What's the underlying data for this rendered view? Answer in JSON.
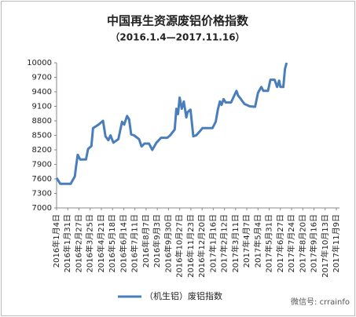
{
  "chart_data": {
    "type": "line",
    "title": "中国再生资源废铝价格指数",
    "subtitle": "（2016.1.4—2017.11.16）",
    "watermark": "微信号: crrainfo",
    "x": [
      "2016-01-04",
      "2016-01-13",
      "2016-02-07",
      "2016-02-17",
      "2016-02-20",
      "2016-02-24",
      "2016-03-01",
      "2016-03-15",
      "2016-03-20",
      "2016-03-28",
      "2016-04-01",
      "2016-04-14",
      "2016-04-25",
      "2016-05-01",
      "2016-05-08",
      "2016-05-13",
      "2016-05-20",
      "2016-06-01",
      "2016-06-10",
      "2016-06-15",
      "2016-06-22",
      "2016-06-27",
      "2016-07-02",
      "2016-07-09",
      "2016-07-21",
      "2016-07-27",
      "2016-08-03",
      "2016-08-14",
      "2016-08-22",
      "2016-09-01",
      "2016-09-12",
      "2016-09-27",
      "2016-10-04",
      "2016-10-15",
      "2016-10-19",
      "2016-10-23",
      "2016-10-27",
      "2016-11-01",
      "2016-11-06",
      "2016-11-12",
      "2016-11-15",
      "2016-11-22",
      "2016-11-29",
      "2016-12-06",
      "2016-12-14",
      "2016-12-21",
      "2017-01-14",
      "2017-01-22",
      "2017-01-27",
      "2017-02-01",
      "2017-02-05",
      "2017-02-10",
      "2017-02-15",
      "2017-02-28",
      "2017-03-13",
      "2017-03-17",
      "2017-03-22",
      "2017-04-01",
      "2017-04-14",
      "2017-04-27",
      "2017-05-04",
      "2017-05-12",
      "2017-05-17",
      "2017-05-28",
      "2017-06-03",
      "2017-06-13",
      "2017-06-19",
      "2017-06-24",
      "2017-06-27",
      "2017-07-04",
      "2017-07-08",
      "2017-07-12"
    ],
    "series": [
      {
        "name": "（机生铝）废铝指数",
        "color": "#4a7ebb",
        "values": [
          7620,
          7500,
          7500,
          7650,
          7860,
          8100,
          8000,
          8000,
          8220,
          8280,
          8650,
          8720,
          8800,
          8480,
          8400,
          8500,
          8350,
          8420,
          8780,
          8720,
          8900,
          8830,
          8520,
          8500,
          8420,
          8270,
          8330,
          8330,
          8200,
          8350,
          8450,
          8450,
          8500,
          8620,
          9050,
          8940,
          9280,
          9050,
          9200,
          8870,
          8980,
          9030,
          8480,
          8500,
          8580,
          8650,
          8650,
          8780,
          9030,
          9200,
          9130,
          9250,
          9180,
          9180,
          9420,
          9320,
          9270,
          9150,
          9100,
          9090,
          9380,
          9500,
          9420,
          9420,
          9650,
          9650,
          9500,
          9630,
          9500,
          9500,
          9870,
          10000
        ]
      }
    ],
    "xlim": [
      "2016-01-04",
      "2017-11-09"
    ],
    "xticks": [
      {
        "value": "2016-01-04",
        "label": "2016年1月4日"
      },
      {
        "value": "2016-01-31",
        "label": "2016年1月31日"
      },
      {
        "value": "2016-02-27",
        "label": "2016年2月27日"
      },
      {
        "value": "2016-03-25",
        "label": "2016年3月25日"
      },
      {
        "value": "2016-04-21",
        "label": "2016年4月21日"
      },
      {
        "value": "2016-05-18",
        "label": "2016年5月18日"
      },
      {
        "value": "2016-06-14",
        "label": "2016年6月14日"
      },
      {
        "value": "2016-07-11",
        "label": "2016年7月11日"
      },
      {
        "value": "2016-08-07",
        "label": "2016年8月7日"
      },
      {
        "value": "2016-09-03",
        "label": "2016年9月3日"
      },
      {
        "value": "2016-09-30",
        "label": "2016年9月30日"
      },
      {
        "value": "2016-10-27",
        "label": "2016年10月27日"
      },
      {
        "value": "2016-11-23",
        "label": "2016年11月23日"
      },
      {
        "value": "2016-12-20",
        "label": "2016年12月20日"
      },
      {
        "value": "2017-01-16",
        "label": "2017年1月16日"
      },
      {
        "value": "2017-02-12",
        "label": "2017年2月12日"
      },
      {
        "value": "2017-03-11",
        "label": "2017年3月11日"
      },
      {
        "value": "2017-04-07",
        "label": "2017年4月7日"
      },
      {
        "value": "2017-05-04",
        "label": "2017年5月4日"
      },
      {
        "value": "2017-05-31",
        "label": "2017年5月31日"
      },
      {
        "value": "2017-06-27",
        "label": "2017年6月27日"
      },
      {
        "value": "2017-07-24",
        "label": "2017年7月24日"
      },
      {
        "value": "2017-08-20",
        "label": "2017年8月20日"
      },
      {
        "value": "2017-09-16",
        "label": "2017年9月16日"
      },
      {
        "value": "2017-10-13",
        "label": "2017年10月13日"
      },
      {
        "value": "2017-11-09",
        "label": "2017年11月9日"
      }
    ],
    "ylim": [
      7000,
      10000
    ],
    "yticks": [
      7000,
      7300,
      7600,
      7900,
      8200,
      8500,
      8800,
      9100,
      9400,
      9700,
      10000
    ],
    "grid": false
  }
}
